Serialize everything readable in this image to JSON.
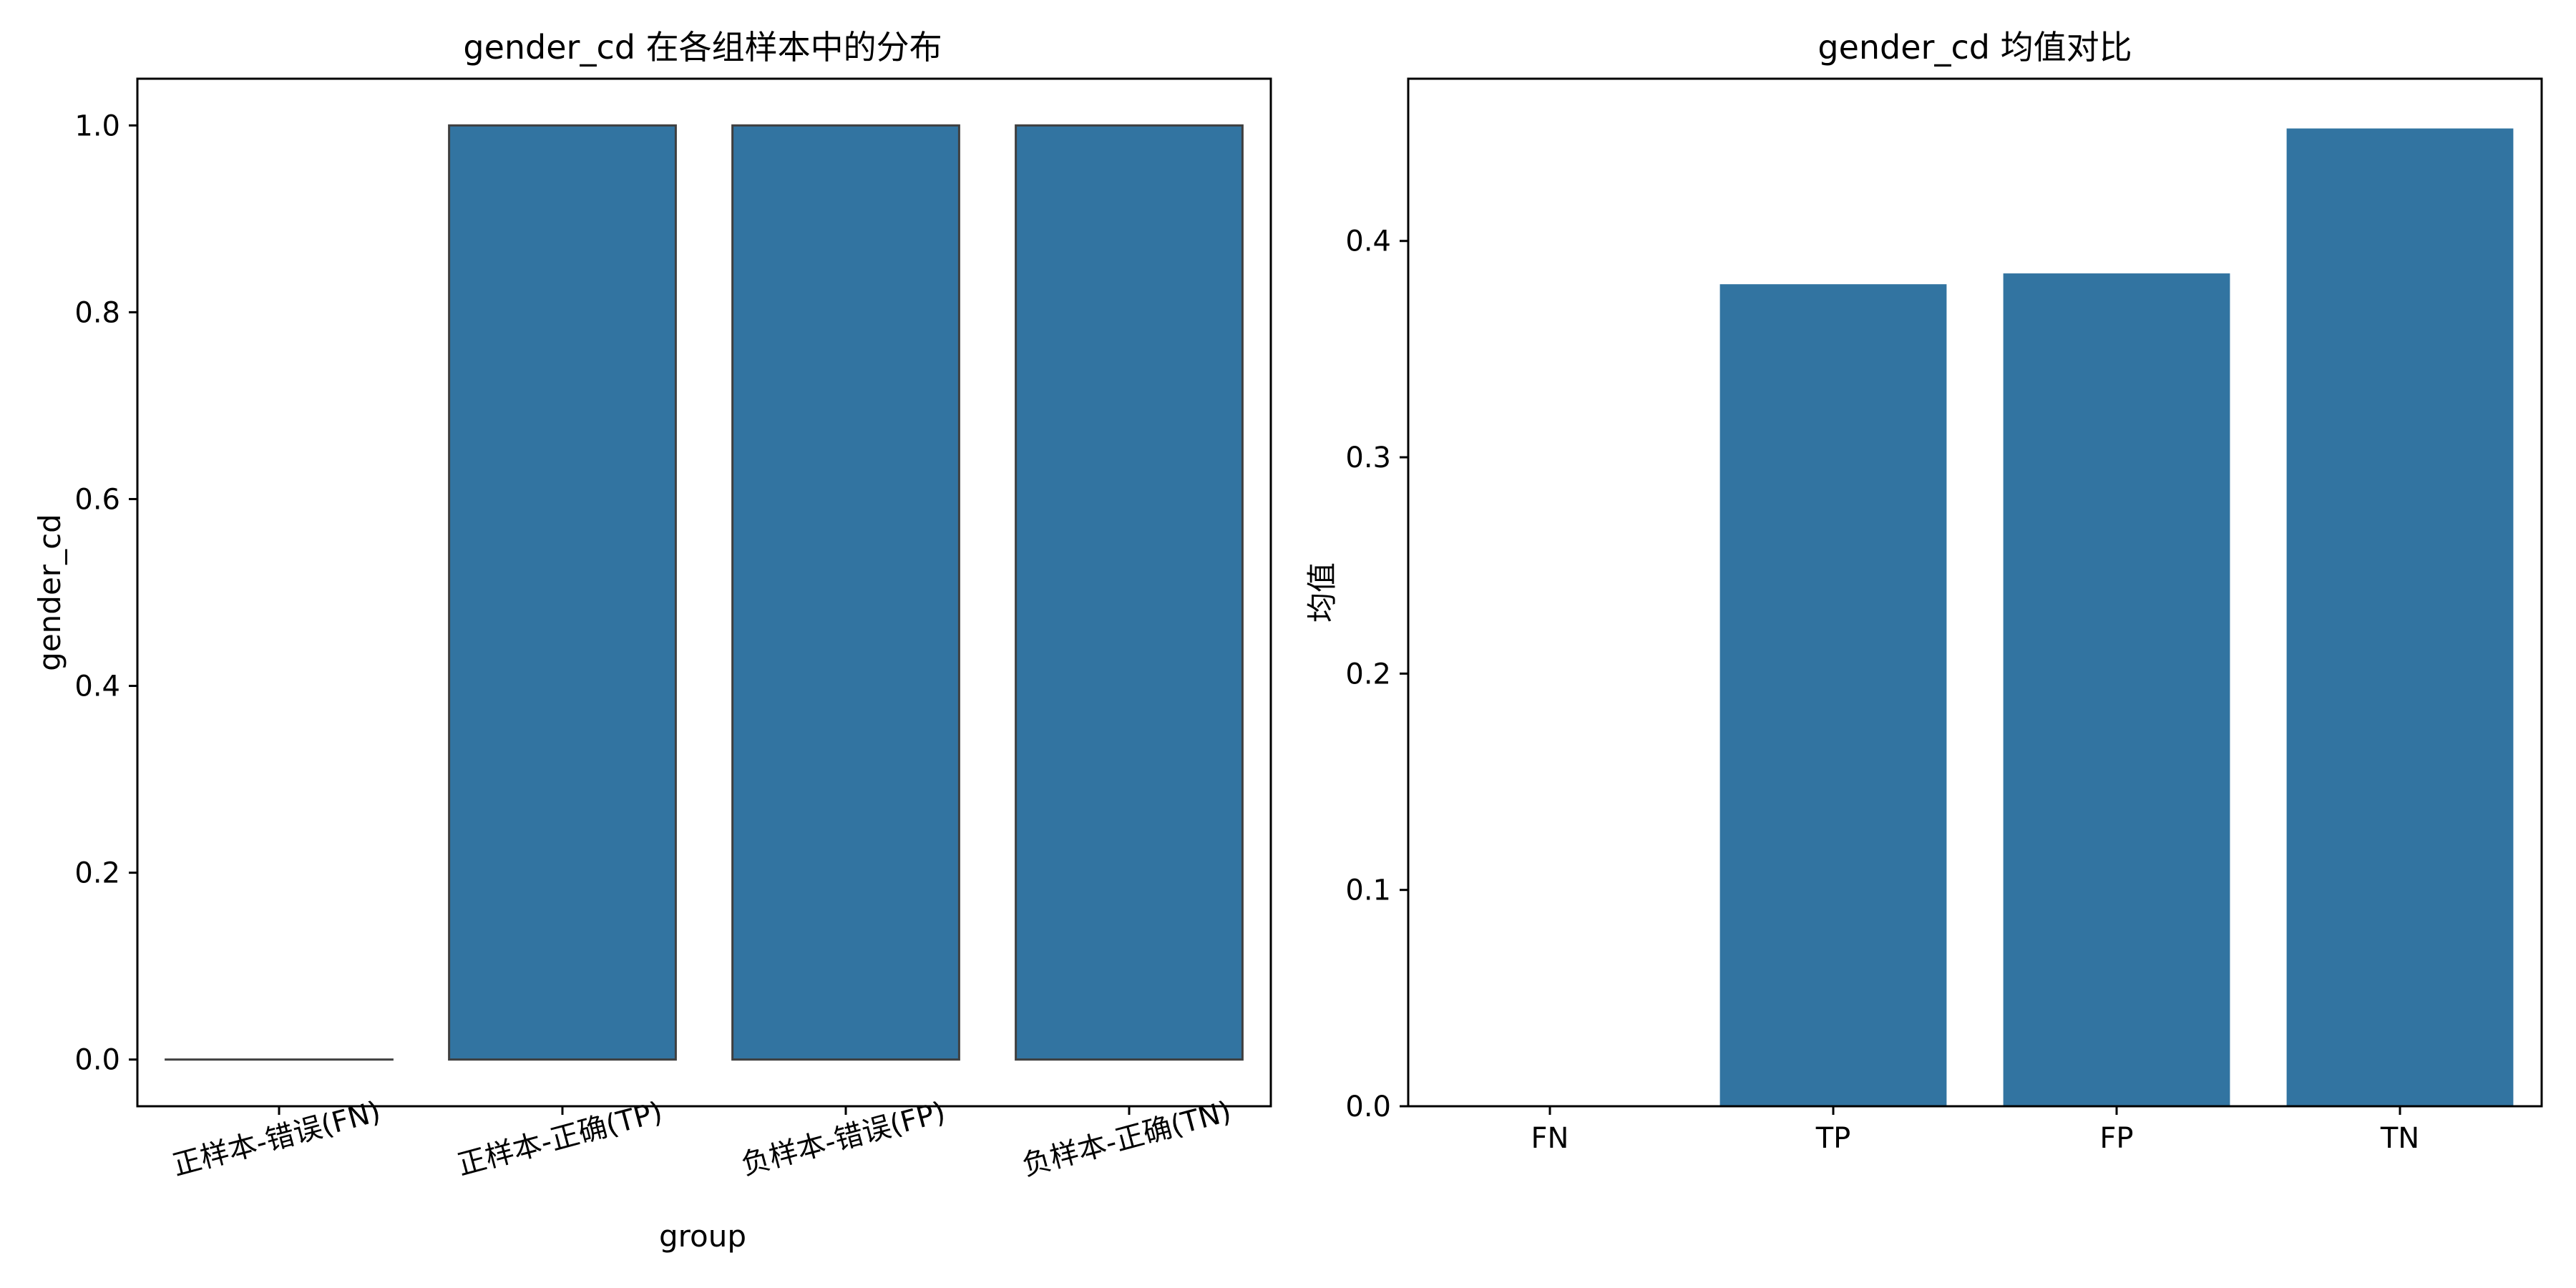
{
  "chart_data": [
    {
      "type": "bar",
      "title": "gender_cd 在各组样本中的分布",
      "xlabel": "group",
      "ylabel": "gender_cd",
      "categories": [
        "正样本-错误(FN)",
        "正样本-正确(TP)",
        "负样本-错误(FP)",
        "负样本-正确(TN)"
      ],
      "values": [
        0.0,
        1.0,
        1.0,
        1.0
      ],
      "ylim": [
        -0.05,
        1.05
      ],
      "yticks": [
        0.0,
        0.2,
        0.4,
        0.6,
        0.8,
        1.0
      ],
      "ytick_labels": [
        "0.0",
        "0.2",
        "0.4",
        "0.6",
        "0.8",
        "1.0"
      ],
      "xtick_rotation": -15,
      "grid": false,
      "bar_color": "#3274a1",
      "edge_color": "#3f3f3f"
    },
    {
      "type": "bar",
      "title": "gender_cd 均值对比",
      "xlabel": "",
      "ylabel": "均值",
      "categories": [
        "FN",
        "TP",
        "FP",
        "TN"
      ],
      "values": [
        0.0,
        0.38,
        0.385,
        0.452
      ],
      "ylim": [
        0,
        0.475
      ],
      "yticks": [
        0.0,
        0.1,
        0.2,
        0.3,
        0.4
      ],
      "ytick_labels": [
        "0.0",
        "0.1",
        "0.2",
        "0.3",
        "0.4"
      ],
      "xtick_rotation": 0,
      "grid": false,
      "bar_color": "#3274a1",
      "edge_color": null
    }
  ]
}
